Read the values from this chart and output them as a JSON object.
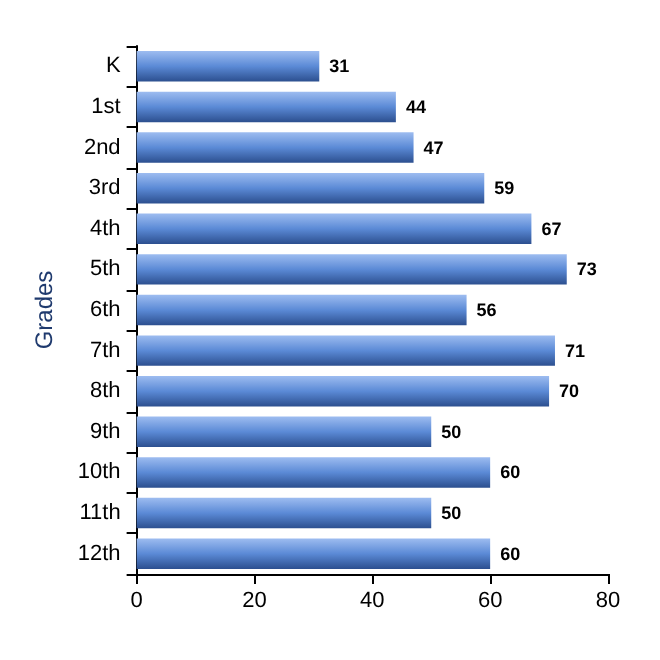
{
  "chart_data": {
    "type": "bar",
    "orientation": "horizontal",
    "ylabel": "Grades",
    "categories": [
      "K",
      "1st",
      "2nd",
      "3rd",
      "4th",
      "5th",
      "6th",
      "7th",
      "8th",
      "9th",
      "10th",
      "11th",
      "12th"
    ],
    "values": [
      31,
      44,
      47,
      59,
      67,
      73,
      56,
      71,
      70,
      50,
      60,
      50,
      60
    ],
    "color": "#5b8ad6",
    "xlim": [
      0,
      80
    ],
    "xticks": [
      0,
      20,
      40,
      60,
      80
    ],
    "grid": false,
    "data_labels": true
  }
}
